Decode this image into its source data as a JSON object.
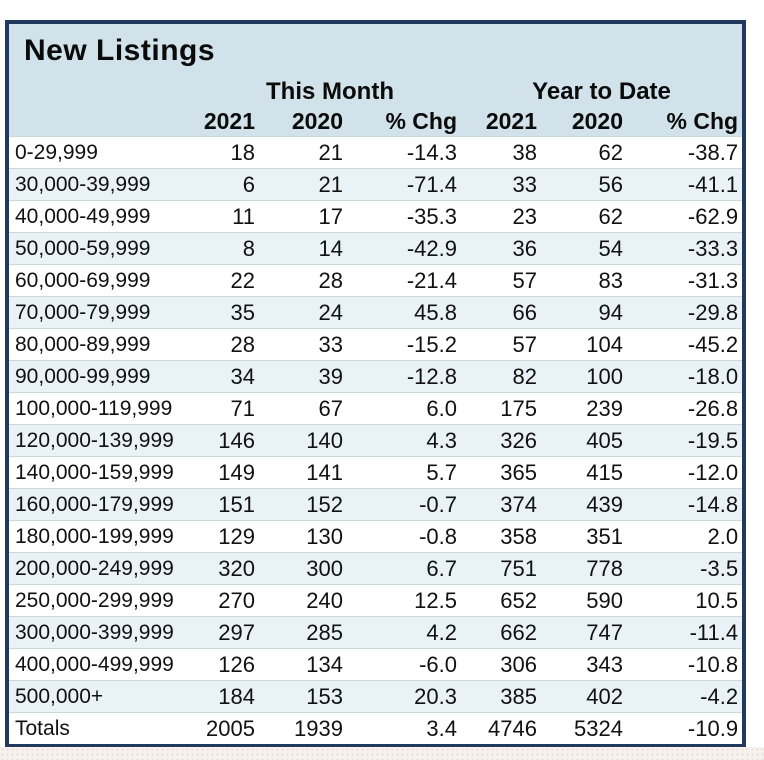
{
  "chart_data": {
    "type": "table",
    "title": "New Listings",
    "group_headers": [
      "This Month",
      "Year to Date"
    ],
    "column_headers": [
      "2021",
      "2020",
      "% Chg",
      "2021",
      "2020",
      "% Chg"
    ],
    "rows": [
      {
        "label": "0-29,999",
        "values": [
          "18",
          "21",
          "-14.3",
          "38",
          "62",
          "-38.7"
        ]
      },
      {
        "label": "30,000-39,999",
        "values": [
          "6",
          "21",
          "-71.4",
          "33",
          "56",
          "-41.1"
        ]
      },
      {
        "label": "40,000-49,999",
        "values": [
          "11",
          "17",
          "-35.3",
          "23",
          "62",
          "-62.9"
        ]
      },
      {
        "label": "50,000-59,999",
        "values": [
          "8",
          "14",
          "-42.9",
          "36",
          "54",
          "-33.3"
        ]
      },
      {
        "label": "60,000-69,999",
        "values": [
          "22",
          "28",
          "-21.4",
          "57",
          "83",
          "-31.3"
        ]
      },
      {
        "label": "70,000-79,999",
        "values": [
          "35",
          "24",
          "45.8",
          "66",
          "94",
          "-29.8"
        ]
      },
      {
        "label": "80,000-89,999",
        "values": [
          "28",
          "33",
          "-15.2",
          "57",
          "104",
          "-45.2"
        ]
      },
      {
        "label": "90,000-99,999",
        "values": [
          "34",
          "39",
          "-12.8",
          "82",
          "100",
          "-18.0"
        ]
      },
      {
        "label": "100,000-119,999",
        "values": [
          "71",
          "67",
          "6.0",
          "175",
          "239",
          "-26.8"
        ]
      },
      {
        "label": "120,000-139,999",
        "values": [
          "146",
          "140",
          "4.3",
          "326",
          "405",
          "-19.5"
        ]
      },
      {
        "label": "140,000-159,999",
        "values": [
          "149",
          "141",
          "5.7",
          "365",
          "415",
          "-12.0"
        ]
      },
      {
        "label": "160,000-179,999",
        "values": [
          "151",
          "152",
          "-0.7",
          "374",
          "439",
          "-14.8"
        ]
      },
      {
        "label": "180,000-199,999",
        "values": [
          "129",
          "130",
          "-0.8",
          "358",
          "351",
          "2.0"
        ]
      },
      {
        "label": "200,000-249,999",
        "values": [
          "320",
          "300",
          "6.7",
          "751",
          "778",
          "-3.5"
        ]
      },
      {
        "label": "250,000-299,999",
        "values": [
          "270",
          "240",
          "12.5",
          "652",
          "590",
          "10.5"
        ]
      },
      {
        "label": "300,000-399,999",
        "values": [
          "297",
          "285",
          "4.2",
          "662",
          "747",
          "-11.4"
        ]
      },
      {
        "label": "400,000-499,999",
        "values": [
          "126",
          "134",
          "-6.0",
          "306",
          "343",
          "-10.8"
        ]
      },
      {
        "label": "500,000+",
        "values": [
          "184",
          "153",
          "20.3",
          "385",
          "402",
          "-4.2"
        ]
      },
      {
        "label": "Totals",
        "values": [
          "2005",
          "1939",
          "3.4",
          "4746",
          "5324",
          "-10.9"
        ]
      }
    ],
    "layout": {
      "numeric_alignment": "right",
      "striped_rows": true
    }
  },
  "colors": {
    "border_navy": "#1f3a5c",
    "header_bg": "#d2e2ea",
    "stripe_bg": "#e9f2f6",
    "row_bg": "#ffffff",
    "text": "#111111",
    "bottom_strip_bg": "#f8f2ef"
  }
}
